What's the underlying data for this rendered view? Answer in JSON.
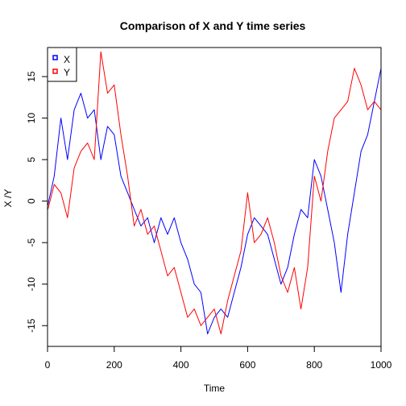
{
  "chart_data": {
    "type": "line",
    "title": "Comparison of X and Y time series",
    "xlabel": "Time",
    "ylabel": "X /Y",
    "xlim": [
      0,
      1000
    ],
    "ylim": [
      -17.5,
      18.5
    ],
    "x_ticks": [
      0,
      200,
      400,
      600,
      800,
      1000
    ],
    "y_ticks": [
      -15,
      -10,
      -5,
      0,
      5,
      10,
      15
    ],
    "grid": false,
    "legend_position": "top-left",
    "series": [
      {
        "name": "X",
        "color": "#0000ff",
        "x": [
          1,
          20,
          40,
          60,
          80,
          100,
          120,
          140,
          160,
          180,
          200,
          220,
          240,
          260,
          280,
          300,
          320,
          340,
          360,
          380,
          400,
          420,
          440,
          460,
          480,
          500,
          520,
          540,
          560,
          580,
          600,
          620,
          640,
          660,
          680,
          700,
          720,
          740,
          760,
          780,
          800,
          820,
          840,
          860,
          880,
          900,
          920,
          940,
          960,
          980,
          1000
        ],
        "y": [
          -0.5,
          3,
          10,
          5,
          11,
          13,
          10,
          11,
          5,
          9,
          8,
          3,
          1,
          -1,
          -3,
          -2,
          -5,
          -2,
          -4,
          -2,
          -5,
          -7,
          -10,
          -11,
          -16,
          -14,
          -13,
          -14,
          -11,
          -8,
          -4,
          -2,
          -3,
          -4,
          -7,
          -10,
          -8,
          -4,
          -1,
          -2,
          5,
          3,
          -1,
          -5,
          -11,
          -4,
          1,
          6,
          8,
          12,
          16
        ]
      },
      {
        "name": "Y",
        "color": "#ff0000",
        "x": [
          1,
          20,
          40,
          60,
          80,
          100,
          120,
          140,
          160,
          180,
          200,
          220,
          240,
          260,
          280,
          300,
          320,
          340,
          360,
          380,
          400,
          420,
          440,
          460,
          480,
          500,
          520,
          540,
          560,
          580,
          600,
          620,
          640,
          660,
          680,
          700,
          720,
          740,
          760,
          780,
          800,
          820,
          840,
          860,
          880,
          900,
          920,
          940,
          960,
          980,
          1000
        ],
        "y": [
          -1,
          2,
          1,
          -2,
          4,
          6,
          7,
          5,
          18,
          13,
          14,
          8,
          3,
          -3,
          -1,
          -4,
          -3,
          -6,
          -9,
          -8,
          -11,
          -14,
          -13,
          -15,
          -14,
          -13,
          -16,
          -12,
          -9,
          -6,
          1,
          -5,
          -4,
          -2,
          -5,
          -9,
          -11,
          -8,
          -13,
          -8,
          3,
          0,
          6,
          10,
          11,
          12,
          16,
          14,
          11,
          12,
          11
        ]
      }
    ]
  }
}
